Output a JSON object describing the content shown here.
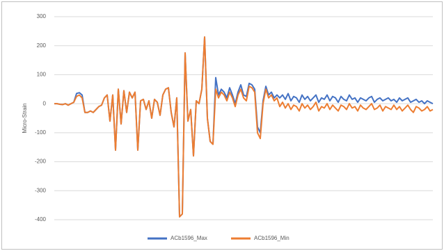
{
  "chart_data": {
    "type": "line",
    "ylabel": "Micro-Strain",
    "ylim": [
      -400,
      300
    ],
    "yticks": [
      -400,
      -300,
      -200,
      -100,
      0,
      100,
      200,
      300
    ],
    "grid": true,
    "legend": "bottom",
    "series": [
      {
        "name": "ACb1596_Max",
        "color": "#4472c4",
        "values": [
          0,
          0,
          -2,
          -3,
          0,
          -5,
          0,
          5,
          35,
          38,
          30,
          -30,
          -30,
          -25,
          -30,
          -20,
          -10,
          -5,
          20,
          30,
          -60,
          30,
          -160,
          50,
          -70,
          45,
          -30,
          40,
          20,
          40,
          -160,
          10,
          15,
          -20,
          10,
          -50,
          15,
          5,
          -40,
          30,
          50,
          55,
          -30,
          -80,
          20,
          -390,
          -380,
          175,
          -60,
          -20,
          -180,
          10,
          0,
          50,
          230,
          -50,
          -130,
          -140,
          90,
          30,
          50,
          40,
          20,
          55,
          30,
          0,
          40,
          65,
          30,
          25,
          70,
          65,
          50,
          -80,
          -100,
          10,
          60,
          30,
          40,
          20,
          30,
          20,
          30,
          15,
          35,
          10,
          25,
          20,
          5,
          30,
          15,
          25,
          10,
          20,
          30,
          5,
          20,
          15,
          30,
          10,
          25,
          20,
          5,
          25,
          15,
          10,
          30,
          15,
          20,
          5,
          20,
          15,
          10,
          20,
          25,
          5,
          15,
          20,
          10,
          15,
          20,
          10,
          15,
          5,
          20,
          10,
          15,
          20,
          5,
          10,
          15,
          5,
          10,
          0,
          10,
          5,
          0
        ]
      },
      {
        "name": "ACb1596_Min",
        "color": "#ed7d31",
        "values": [
          0,
          0,
          -2,
          -3,
          0,
          -5,
          0,
          5,
          25,
          30,
          20,
          -30,
          -30,
          -25,
          -30,
          -20,
          -10,
          -5,
          20,
          30,
          -60,
          30,
          -160,
          50,
          -70,
          45,
          -30,
          40,
          20,
          40,
          -160,
          10,
          15,
          -20,
          10,
          -50,
          15,
          5,
          -40,
          30,
          50,
          55,
          -30,
          -80,
          20,
          -390,
          -380,
          175,
          -60,
          -20,
          -180,
          10,
          0,
          50,
          230,
          -50,
          -130,
          -140,
          50,
          20,
          40,
          30,
          10,
          40,
          20,
          -10,
          30,
          50,
          20,
          10,
          60,
          55,
          40,
          -100,
          -120,
          0,
          50,
          20,
          30,
          10,
          20,
          -10,
          5,
          -15,
          0,
          -20,
          -5,
          -10,
          -25,
          0,
          -15,
          -5,
          -20,
          -10,
          5,
          -25,
          -10,
          -15,
          0,
          -20,
          -5,
          -15,
          -25,
          -5,
          -10,
          -20,
          0,
          -15,
          -10,
          -25,
          -5,
          -15,
          -20,
          -10,
          0,
          -20,
          -15,
          -5,
          -25,
          -10,
          -15,
          -20,
          -5,
          -20,
          -10,
          -25,
          -15,
          -5,
          -20,
          -30,
          -10,
          -15,
          -25,
          -20,
          -10,
          -25,
          -20
        ]
      }
    ]
  }
}
